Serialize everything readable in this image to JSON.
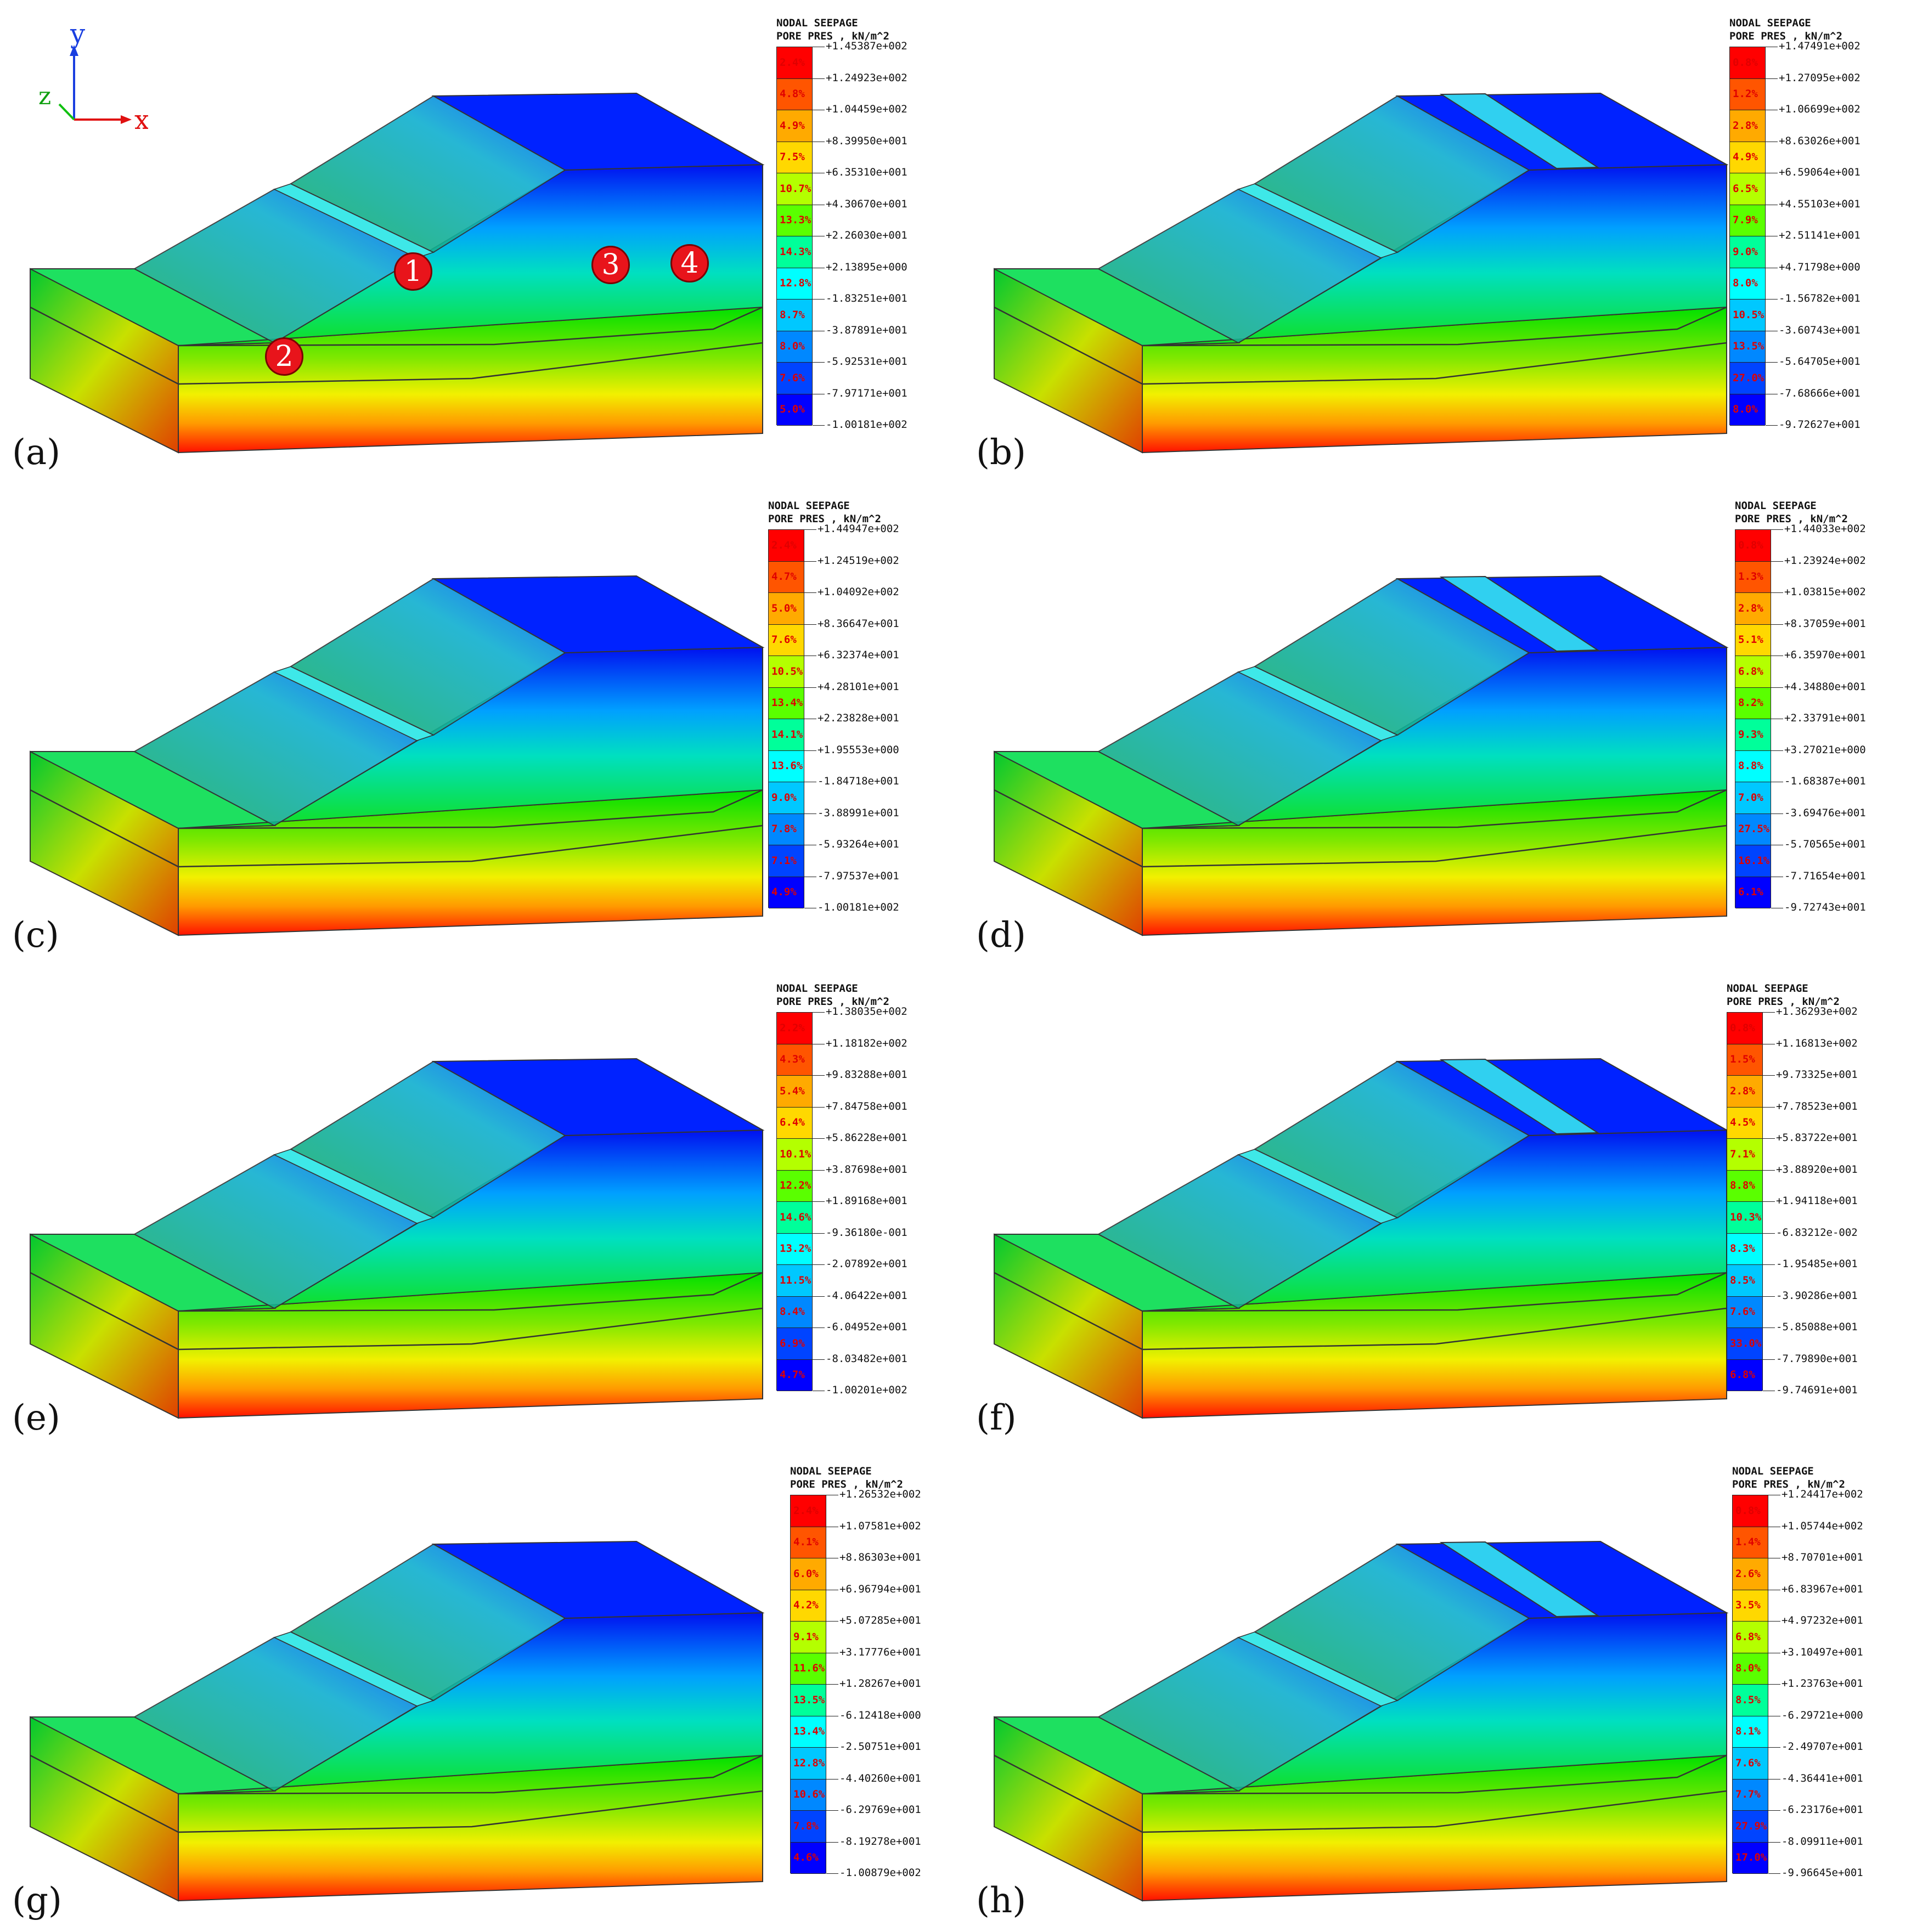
{
  "legend_title": [
    "NODAL SEEPAGE",
    "PORE PRES , kN/m^2"
  ],
  "axes": {
    "y": "y",
    "z": "z",
    "x": "x"
  },
  "points": [
    "1",
    "2",
    "3",
    "4"
  ],
  "colors": [
    "#ff0000",
    "#ff5500",
    "#ffaa00",
    "#ffd800",
    "#b4ff00",
    "#5aff00",
    "#00e400",
    "#00ff9a",
    "#00ffff",
    "#00c8ff",
    "#0088ff",
    "#0044ff",
    "#0000ff"
  ],
  "panels": [
    {
      "label": "(a)",
      "values": [
        "+1.45387e+002",
        "+1.24923e+002",
        "+1.04459e+002",
        "+8.39950e+001",
        "+6.35310e+001",
        "+4.30670e+001",
        "+2.26030e+001",
        "+2.13895e+000",
        "-1.83251e+001",
        "-3.87891e+001",
        "-5.92531e+001",
        "-7.97171e+001",
        "-1.00181e+002"
      ],
      "percents": [
        "2.4%",
        "4.8%",
        "4.9%",
        "7.5%",
        "10.7%",
        "13.3%",
        "14.3%",
        "12.8%",
        "8.7%",
        "8.0%",
        "7.6%",
        "5.0%"
      ]
    },
    {
      "label": "(b)",
      "values": [
        "+1.47491e+002",
        "+1.27095e+002",
        "+1.06699e+002",
        "+8.63026e+001",
        "+6.59064e+001",
        "+4.55103e+001",
        "+2.51141e+001",
        "+4.71798e+000",
        "-1.56782e+001",
        "-3.60743e+001",
        "-5.64705e+001",
        "-7.68666e+001",
        "-9.72627e+001"
      ],
      "percents": [
        "0.8%",
        "1.2%",
        "2.8%",
        "4.9%",
        "6.5%",
        "7.9%",
        "9.0%",
        "8.0%",
        "10.5%",
        "13.5%",
        "27.0%",
        "8.0%"
      ]
    },
    {
      "label": "(c)",
      "values": [
        "+1.44947e+002",
        "+1.24519e+002",
        "+1.04092e+002",
        "+8.36647e+001",
        "+6.32374e+001",
        "+4.28101e+001",
        "+2.23828e+001",
        "+1.95553e+000",
        "-1.84718e+001",
        "-3.88991e+001",
        "-5.93264e+001",
        "-7.97537e+001",
        "-1.00181e+002"
      ],
      "percents": [
        "2.4%",
        "4.7%",
        "5.0%",
        "7.6%",
        "10.5%",
        "13.4%",
        "14.1%",
        "13.6%",
        "9.0%",
        "7.8%",
        "7.1%",
        "4.9%"
      ]
    },
    {
      "label": "(d)",
      "values": [
        "+1.44033e+002",
        "+1.23924e+002",
        "+1.03815e+002",
        "+8.37059e+001",
        "+6.35970e+001",
        "+4.34880e+001",
        "+2.33791e+001",
        "+3.27021e+000",
        "-1.68387e+001",
        "-3.69476e+001",
        "-5.70565e+001",
        "-7.71654e+001",
        "-9.72743e+001"
      ],
      "percents": [
        "0.8%",
        "1.3%",
        "2.8%",
        "5.1%",
        "6.8%",
        "8.2%",
        "9.3%",
        "8.8%",
        "7.0%",
        "27.5%",
        "16.1%",
        "6.1%"
      ]
    },
    {
      "label": "(e)",
      "values": [
        "+1.38035e+002",
        "+1.18182e+002",
        "+9.83288e+001",
        "+7.84758e+001",
        "+5.86228e+001",
        "+3.87698e+001",
        "+1.89168e+001",
        "-9.36180e-001",
        "-2.07892e+001",
        "-4.06422e+001",
        "-6.04952e+001",
        "-8.03482e+001",
        "-1.00201e+002"
      ],
      "percents": [
        "2.2%",
        "4.3%",
        "5.4%",
        "6.4%",
        "10.1%",
        "12.2%",
        "14.6%",
        "13.2%",
        "11.5%",
        "8.4%",
        "6.9%",
        "4.7%"
      ]
    },
    {
      "label": "(f)",
      "values": [
        "+1.36293e+002",
        "+1.16813e+002",
        "+9.73325e+001",
        "+7.78523e+001",
        "+5.83722e+001",
        "+3.88920e+001",
        "+1.94118e+001",
        "-6.83212e-002",
        "-1.95485e+001",
        "-3.90286e+001",
        "-5.85088e+001",
        "-7.79890e+001",
        "-9.74691e+001"
      ],
      "percents": [
        "0.8%",
        "1.5%",
        "2.8%",
        "4.5%",
        "7.1%",
        "8.8%",
        "10.3%",
        "8.3%",
        "8.5%",
        "7.6%",
        "33.0%",
        "6.8%"
      ]
    },
    {
      "label": "(g)",
      "values": [
        "+1.26532e+002",
        "+1.07581e+002",
        "+8.86303e+001",
        "+6.96794e+001",
        "+5.07285e+001",
        "+3.17776e+001",
        "+1.28267e+001",
        "-6.12418e+000",
        "-2.50751e+001",
        "-4.40260e+001",
        "-6.29769e+001",
        "-8.19278e+001",
        "-1.00879e+002"
      ],
      "percents": [
        "2.4%",
        "4.1%",
        "6.0%",
        "4.2%",
        "9.1%",
        "11.6%",
        "13.5%",
        "13.4%",
        "12.8%",
        "10.6%",
        "7.8%",
        "4.6%"
      ]
    },
    {
      "label": "(h)",
      "values": [
        "+1.24417e+002",
        "+1.05744e+002",
        "+8.70701e+001",
        "+6.83967e+001",
        "+4.97232e+001",
        "+3.10497e+001",
        "+1.23763e+001",
        "-6.29721e+000",
        "-2.49707e+001",
        "-4.36441e+001",
        "-6.23176e+001",
        "-8.09911e+001",
        "-9.96645e+001"
      ],
      "percents": [
        "0.8%",
        "1.4%",
        "2.6%",
        "3.5%",
        "6.8%",
        "8.0%",
        "8.5%",
        "8.1%",
        "7.6%",
        "7.7%",
        "27.9%",
        "17.0%"
      ]
    }
  ]
}
